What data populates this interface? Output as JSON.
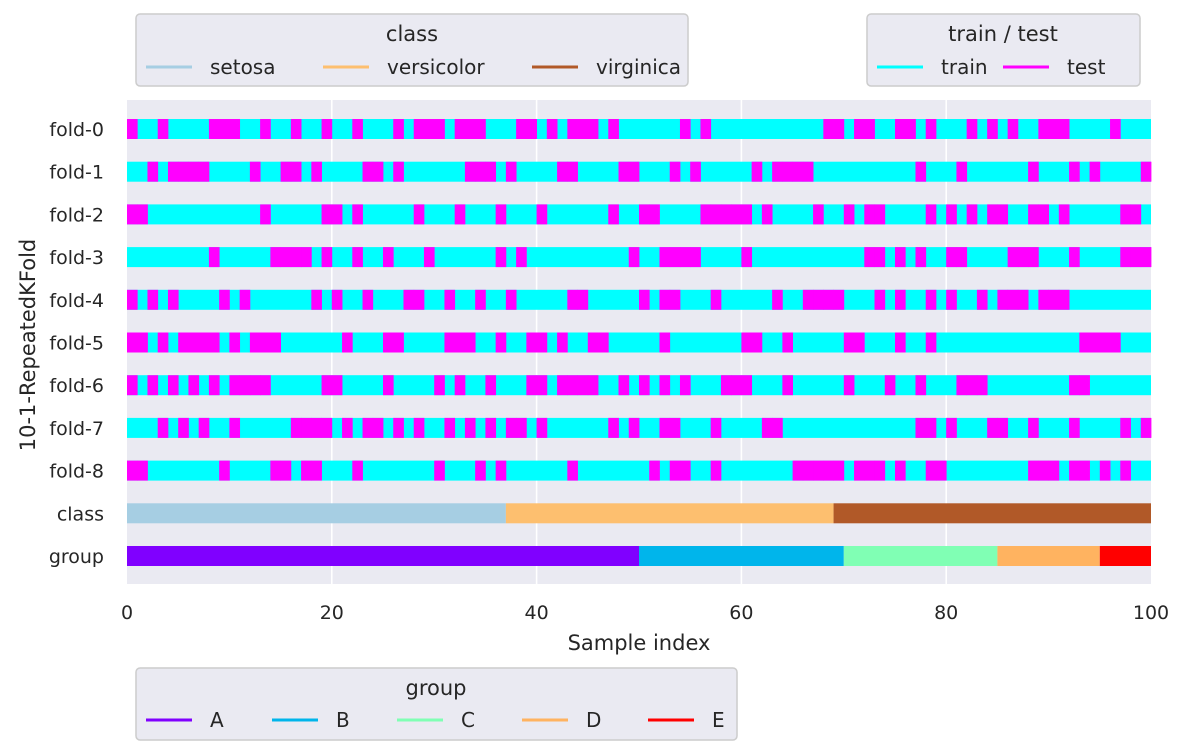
{
  "chart_data": {
    "type": "heatmap",
    "xlabel": "Sample index",
    "ylabel": "10-1-RepeatedKFold",
    "xlim": [
      0,
      100
    ],
    "xticks": [
      0,
      20,
      40,
      60,
      80,
      100
    ],
    "grid": true,
    "background": "#eaeaf2",
    "rows": [
      "fold-0",
      "fold-1",
      "fold-2",
      "fold-3",
      "fold-4",
      "fold-5",
      "fold-6",
      "fold-7",
      "fold-8",
      "class",
      "group"
    ],
    "train_test_colors": {
      "train": "#00ffff",
      "test": "#ff00ff"
    },
    "folds": [
      {
        "name": "fold-0",
        "test": [
          0,
          3,
          8,
          9,
          10,
          13,
          16,
          19,
          22,
          26,
          28,
          29,
          30,
          32,
          33,
          34,
          38,
          39,
          41,
          43,
          44,
          45,
          47,
          54,
          56,
          68,
          69,
          71,
          72,
          75,
          76,
          78,
          82,
          84,
          86,
          89,
          90,
          91,
          96
        ]
      },
      {
        "name": "fold-1",
        "test": [
          2,
          4,
          5,
          6,
          7,
          12,
          15,
          16,
          18,
          23,
          24,
          26,
          33,
          34,
          35,
          37,
          42,
          43,
          48,
          49,
          53,
          55,
          61,
          63,
          64,
          65,
          66,
          77,
          81,
          88,
          92,
          94,
          99
        ]
      },
      {
        "name": "fold-2",
        "test": [
          0,
          1,
          13,
          19,
          20,
          22,
          28,
          32,
          36,
          40,
          47,
          50,
          51,
          56,
          57,
          58,
          59,
          60,
          62,
          67,
          70,
          72,
          73,
          78,
          80,
          82,
          84,
          85,
          88,
          89,
          91,
          97,
          98
        ]
      },
      {
        "name": "fold-3",
        "test": [
          8,
          14,
          15,
          16,
          17,
          19,
          22,
          25,
          29,
          36,
          38,
          49,
          52,
          53,
          54,
          55,
          60,
          72,
          73,
          75,
          77,
          80,
          81,
          86,
          87,
          88,
          92,
          97,
          98,
          99
        ]
      },
      {
        "name": "fold-4",
        "test": [
          0,
          2,
          4,
          9,
          11,
          18,
          20,
          23,
          27,
          28,
          31,
          34,
          37,
          43,
          44,
          50,
          52,
          53,
          57,
          63,
          66,
          67,
          68,
          69,
          73,
          75,
          78,
          80,
          83,
          85,
          86,
          87,
          89,
          90,
          91
        ]
      },
      {
        "name": "fold-5",
        "test": [
          0,
          1,
          3,
          5,
          6,
          7,
          8,
          10,
          12,
          13,
          14,
          21,
          25,
          26,
          31,
          32,
          33,
          36,
          39,
          40,
          42,
          45,
          46,
          52,
          60,
          61,
          64,
          70,
          71,
          75,
          78,
          93,
          94,
          95,
          96
        ]
      },
      {
        "name": "fold-6",
        "test": [
          0,
          2,
          4,
          6,
          8,
          10,
          11,
          12,
          13,
          19,
          20,
          25,
          30,
          32,
          35,
          39,
          40,
          42,
          43,
          44,
          45,
          48,
          50,
          52,
          54,
          58,
          59,
          60,
          64,
          70,
          74,
          77,
          81,
          82,
          83,
          92,
          93
        ]
      },
      {
        "name": "fold-7",
        "test": [
          3,
          5,
          7,
          10,
          16,
          17,
          18,
          19,
          21,
          23,
          24,
          26,
          28,
          31,
          33,
          35,
          37,
          38,
          40,
          47,
          49,
          52,
          53,
          57,
          62,
          63,
          77,
          78,
          80,
          84,
          85,
          88,
          92,
          97,
          99
        ]
      },
      {
        "name": "fold-8",
        "test": [
          0,
          1,
          9,
          14,
          15,
          17,
          18,
          22,
          30,
          34,
          36,
          43,
          51,
          53,
          54,
          57,
          65,
          66,
          67,
          68,
          69,
          71,
          72,
          73,
          75,
          78,
          79,
          88,
          89,
          90,
          92,
          93,
          95,
          97
        ]
      }
    ],
    "class_legend": {
      "title": "class",
      "entries": [
        {
          "label": "setosa",
          "color": "#a6cee3"
        },
        {
          "label": "versicolor",
          "color": "#fdbf6f"
        },
        {
          "label": "virginica",
          "color": "#b15928"
        }
      ]
    },
    "class_segments": [
      {
        "label": "setosa",
        "start": 0,
        "end": 36
      },
      {
        "label": "versicolor",
        "start": 37,
        "end": 68
      },
      {
        "label": "virginica",
        "start": 69,
        "end": 99
      }
    ],
    "train_test_legend": {
      "title": "train / test",
      "entries": [
        {
          "label": "train",
          "color": "#00ffff"
        },
        {
          "label": "test",
          "color": "#ff00ff"
        }
      ]
    },
    "group_legend": {
      "title": "group",
      "entries": [
        {
          "label": "A",
          "color": "#8000ff"
        },
        {
          "label": "B",
          "color": "#00b5eb"
        },
        {
          "label": "C",
          "color": "#80ffb4"
        },
        {
          "label": "D",
          "color": "#ffb360"
        },
        {
          "label": "E",
          "color": "#ff0000"
        }
      ]
    },
    "group_segments": [
      {
        "label": "A",
        "start": 0,
        "end": 49
      },
      {
        "label": "B",
        "start": 50,
        "end": 69
      },
      {
        "label": "C",
        "start": 70,
        "end": 84
      },
      {
        "label": "D",
        "start": 85,
        "end": 94
      },
      {
        "label": "E",
        "start": 95,
        "end": 99
      }
    ]
  }
}
